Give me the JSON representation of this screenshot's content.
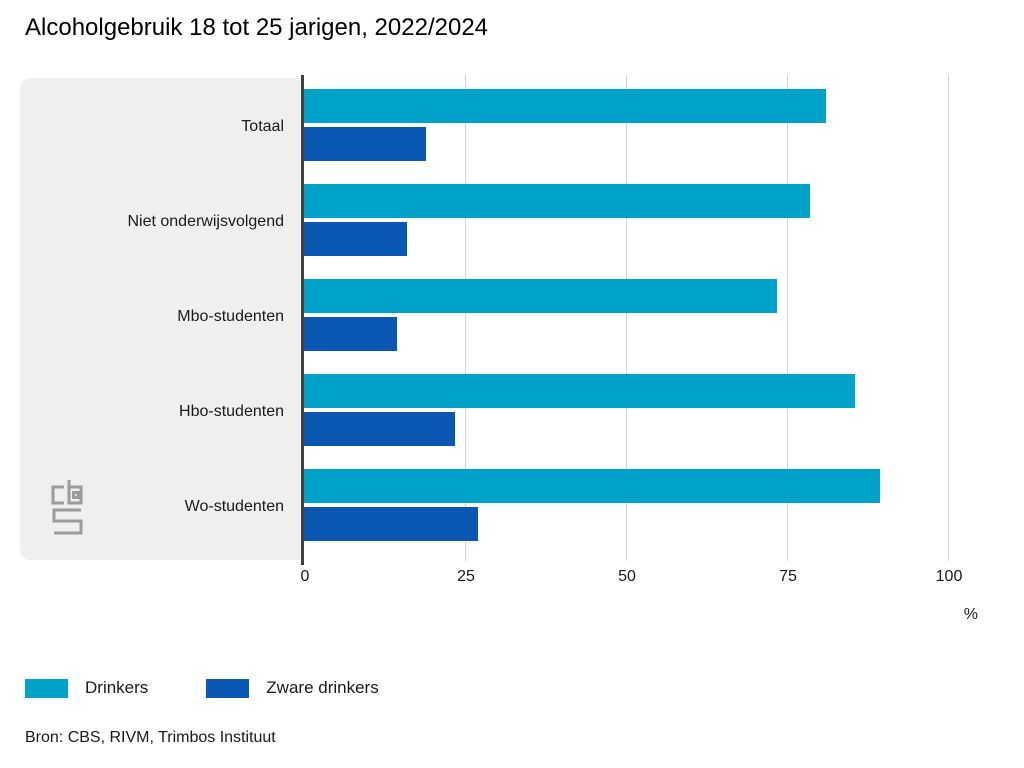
{
  "page": {
    "title": "Alcoholgebruik 18 tot 25 jarigen, 2022/2024",
    "source_note": "Bron: CBS, RIVM, Trimbos Instituut",
    "logo_name": "cbs-logo"
  },
  "chart_data": {
    "type": "bar",
    "orientation": "horizontal",
    "title": "Alcoholgebruik 18 tot 25 jarigen, 2022/2024",
    "categories": [
      "Totaal",
      "Niet onderwijsvolgend",
      "Mbo-studenten",
      "Hbo-studenten",
      "Wo-studenten"
    ],
    "series": [
      {
        "name": "Drinkers",
        "color": "#00a2c9",
        "values": [
          81,
          78.5,
          73.5,
          85.5,
          89.5
        ]
      },
      {
        "name": "Zware drinkers",
        "color": "#0a58b4",
        "values": [
          19,
          16,
          14.5,
          23.5,
          27
        ]
      }
    ],
    "xlabel": "%",
    "x_ticks": [
      0,
      25,
      50,
      75,
      100
    ],
    "xlim": [
      0,
      110
    ],
    "grid": "vertical-gridlines-at-ticks",
    "legend_position": "bottom-left",
    "source": "Bron: CBS, RIVM, Trimbos Instituut",
    "colors": {
      "label_panel": "#efefef",
      "axis_line": "#404040",
      "gridline": "#d5d5d5",
      "text": "#1a1a1a",
      "logo_grey": "#9b9b9b"
    }
  }
}
